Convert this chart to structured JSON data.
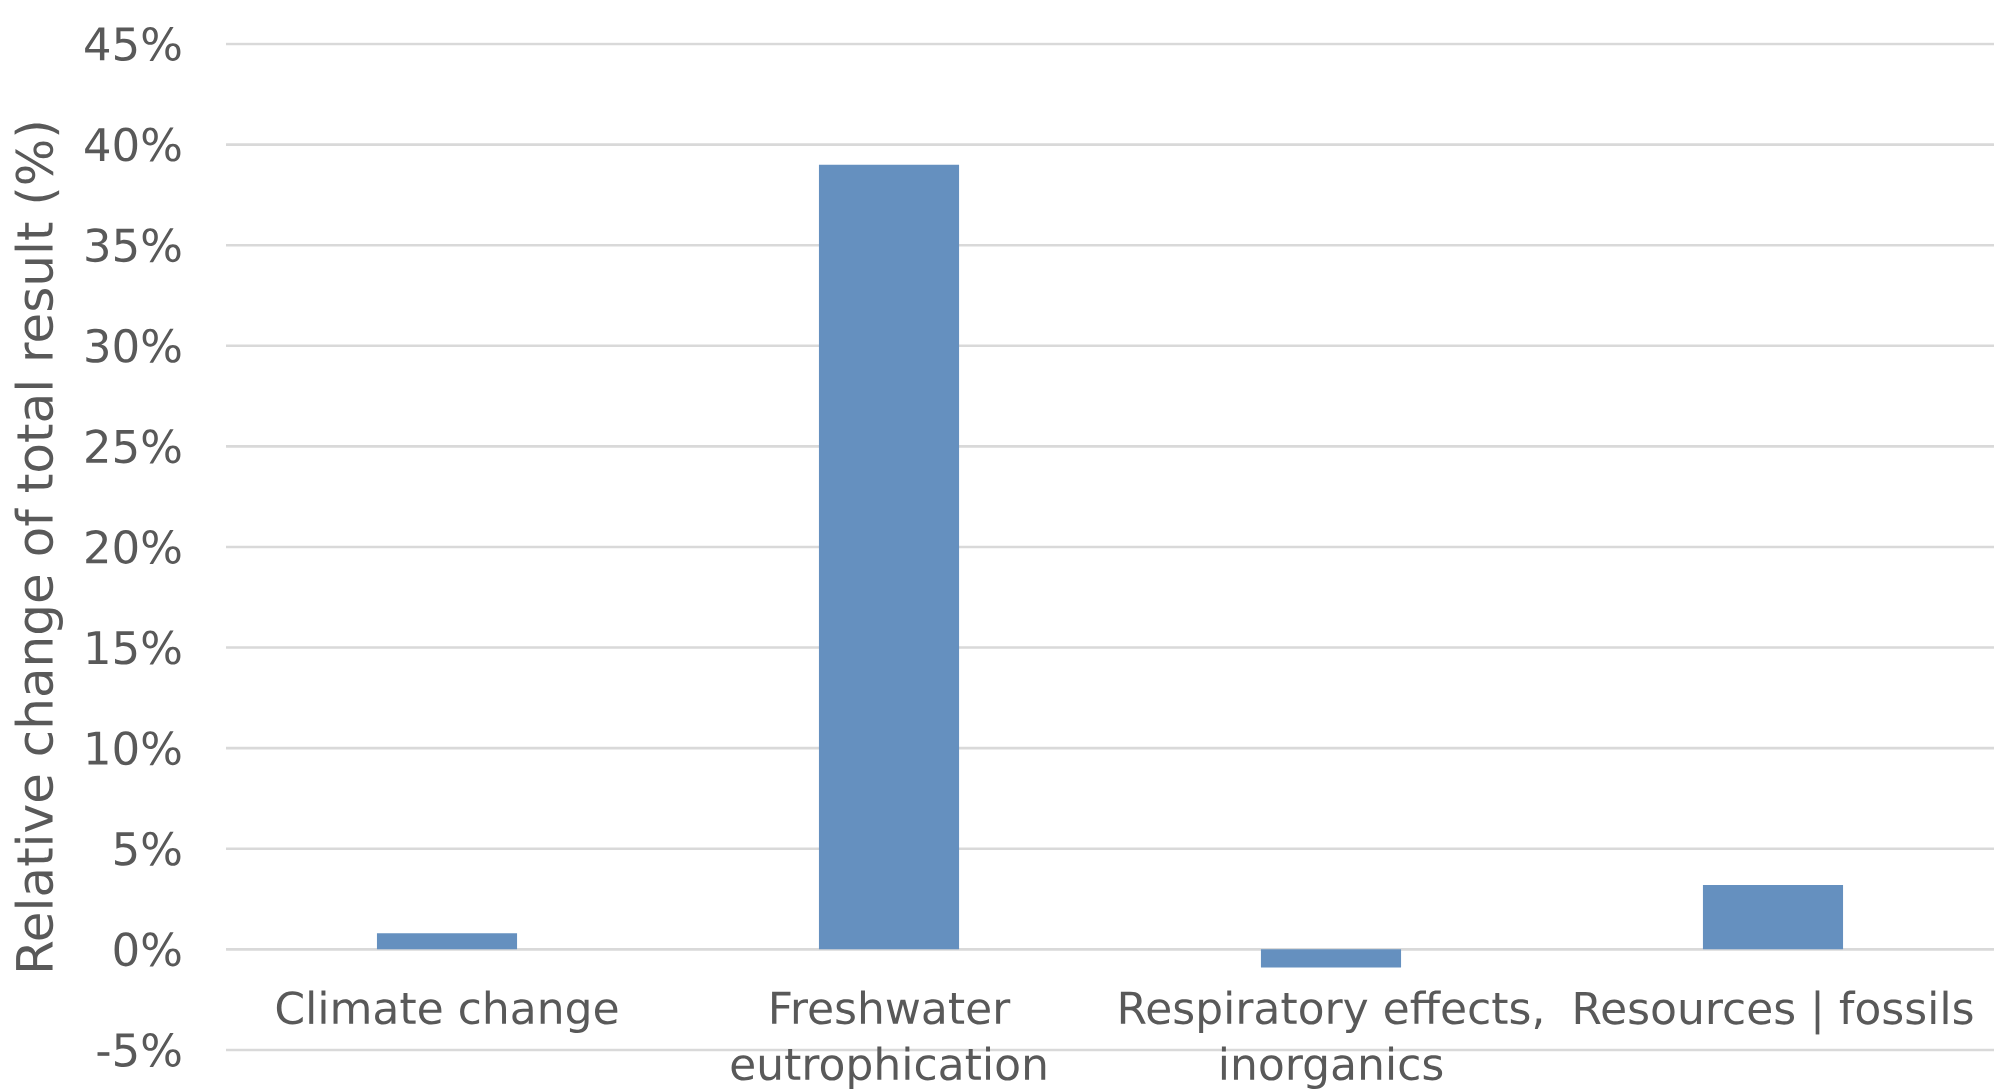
{
  "chart_data": {
    "type": "bar",
    "ylabel": "Relative change of total result (%)",
    "categories": [
      "Climate change",
      "Freshwater eutrophication",
      "Respiratory effects, inorganics",
      "Resources | fossils"
    ],
    "values": [
      0.8,
      39,
      -0.9,
      3.2
    ],
    "color": "#6590bf",
    "ylim": [
      -5,
      45
    ],
    "yticks": [
      {
        "value": -5,
        "label": "-5%"
      },
      {
        "value": 0,
        "label": "0%"
      },
      {
        "value": 5,
        "label": "5%"
      },
      {
        "value": 10,
        "label": "10%"
      },
      {
        "value": 15,
        "label": "15%"
      },
      {
        "value": 20,
        "label": "20%"
      },
      {
        "value": 25,
        "label": "25%"
      },
      {
        "value": 30,
        "label": "30%"
      },
      {
        "value": 35,
        "label": "35%"
      },
      {
        "value": 40,
        "label": "40%"
      },
      {
        "value": 45,
        "label": "45%"
      }
    ],
    "grid": "y"
  }
}
